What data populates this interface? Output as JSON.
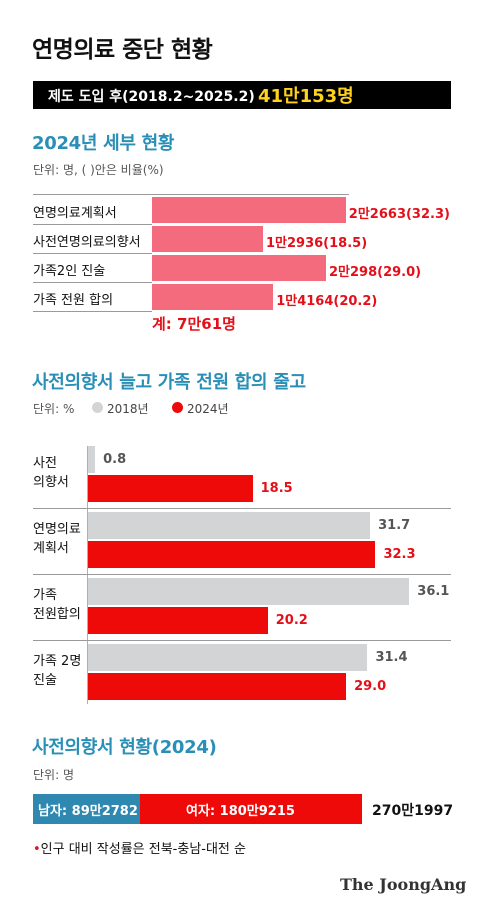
{
  "title": "연명의료 중단 현황",
  "banner": {
    "label": "제도 도입 후(2018.2~2025.2)",
    "value": "41만153명"
  },
  "section1": {
    "title": "2024년 세부 현황",
    "unit": "단위: 명, ( )안은 비율(%)",
    "total": "계: 7만61명"
  },
  "section2": {
    "title": "사전의향서 늘고 가족 전원 합의 줄고",
    "unit": "단위: %",
    "legend": [
      {
        "label": "2018년",
        "color": "#d2d4d6"
      },
      {
        "label": "2024년",
        "color": "#ef0a0a"
      }
    ]
  },
  "section3": {
    "title": "사전의향서 현황(2024)",
    "unit": "단위: 명",
    "male_label": "남자: 89만2782",
    "female_label": "여자: 180만9215",
    "total": "270만1997",
    "note_bullet": "•",
    "note": "인구 대비 작성률은 전북-충남-대전 순"
  },
  "logo": "The JoongAng",
  "colors": {
    "accent_blue": "#2a8fb6",
    "red": "#e3101a",
    "pink": "#f36b7d",
    "gray": "#d2d4d6",
    "male_blue": "#2f88b0"
  },
  "chart_data": [
    {
      "type": "bar",
      "orientation": "horizontal",
      "title": "2024년 세부 현황",
      "categories": [
        "연명의료계획서",
        "사전연명의료의향서",
        "가족2인 진술",
        "가족 전원 합의"
      ],
      "values": [
        22663,
        12936,
        20298,
        14164
      ],
      "percent": [
        32.3,
        18.5,
        29.0,
        20.2
      ],
      "labels": [
        "2만2663(32.3)",
        "1만2936(18.5)",
        "2만298(29.0)",
        "1만4164(20.2)"
      ]
    },
    {
      "type": "bar",
      "orientation": "horizontal",
      "title": "사전의향서 늘고 가족 전원 합의 줄고",
      "categories": [
        "사전\n의향서",
        "연명의료\n계획서",
        "가족\n전원합의",
        "가족 2명\n진술"
      ],
      "series": [
        {
          "name": "2018년",
          "values": [
            0.8,
            31.7,
            36.1,
            31.4
          ]
        },
        {
          "name": "2024년",
          "values": [
            18.5,
            32.3,
            20.2,
            29.0
          ]
        }
      ],
      "legend": "top-left"
    },
    {
      "type": "bar",
      "orientation": "horizontal",
      "stacked": true,
      "title": "사전의향서 현황(2024)",
      "categories": [
        "남자",
        "여자"
      ],
      "values": [
        892782,
        1809215
      ],
      "total": 2701997
    }
  ]
}
